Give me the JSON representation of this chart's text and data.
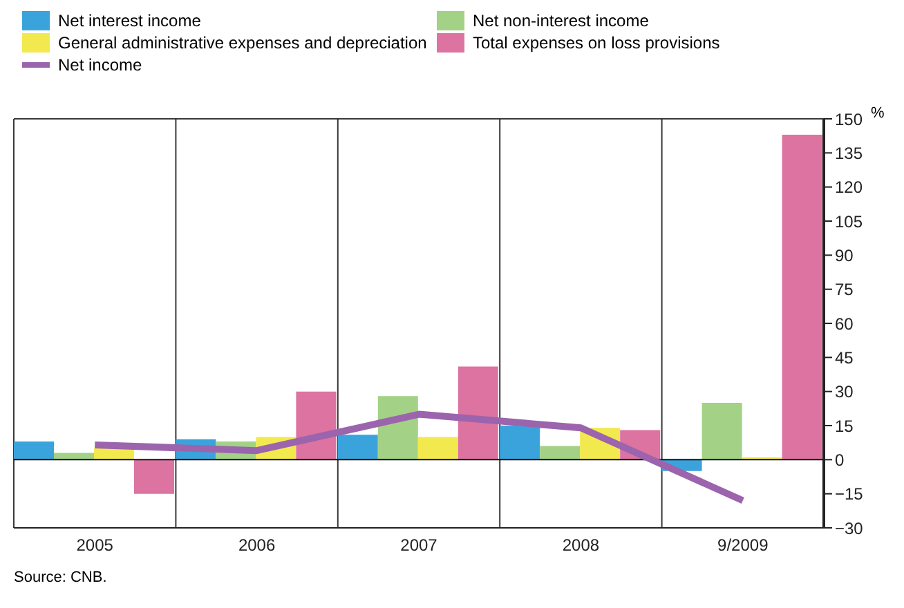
{
  "chart_data": {
    "type": "bar",
    "categories": [
      "2005",
      "2006",
      "2007",
      "2008",
      "9/2009"
    ],
    "ylabel": "%",
    "series": [
      {
        "name": "Net interest income",
        "color": "#3ba3dc",
        "values": [
          8,
          9,
          11,
          15,
          -5
        ]
      },
      {
        "name": "Net non-interest income",
        "color": "#a3d186",
        "values": [
          3,
          8,
          28,
          6,
          25
        ]
      },
      {
        "name": "General administrative expenses and depreciation",
        "color": "#f2e94e",
        "values": [
          5,
          10,
          10,
          14,
          1
        ]
      },
      {
        "name": "Total expenses on loss provisions",
        "color": "#dc73a1",
        "values": [
          -15,
          30,
          41,
          13,
          143
        ]
      },
      {
        "name": "Net income",
        "type": "line",
        "color": "#9b64ad",
        "values": [
          6.5,
          4,
          20,
          14,
          -18
        ]
      }
    ],
    "ylim": [
      -30,
      150
    ],
    "yticks": [
      -30,
      -15,
      0,
      15,
      30,
      45,
      60,
      75,
      90,
      105,
      120,
      135,
      150
    ],
    "grid": true,
    "legend": "top",
    "marker": "none",
    "line_style": "solid",
    "annotations": [
      "Source: CNB."
    ]
  }
}
